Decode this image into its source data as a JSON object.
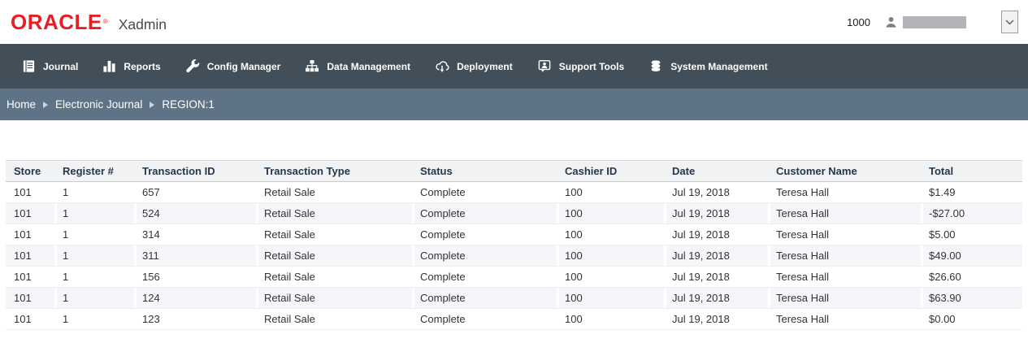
{
  "header": {
    "logo_text": "ORACLE",
    "registered_mark": "®",
    "app_name": "Xadmin",
    "org_id": "1000",
    "user_icon": "person-icon",
    "dropdown_icon": "chevron-down-icon"
  },
  "nav": {
    "items": [
      {
        "label": "Journal",
        "icon": "journal-icon"
      },
      {
        "label": "Reports",
        "icon": "reports-icon"
      },
      {
        "label": "Config Manager",
        "icon": "config-manager-icon"
      },
      {
        "label": "Data Management",
        "icon": "data-management-icon"
      },
      {
        "label": "Deployment",
        "icon": "deployment-icon"
      },
      {
        "label": "Support Tools",
        "icon": "support-tools-icon"
      },
      {
        "label": "System Management",
        "icon": "system-management-icon"
      }
    ]
  },
  "breadcrumb": {
    "items": [
      "Home",
      "Electronic Journal",
      "REGION:1"
    ]
  },
  "table": {
    "columns": [
      "Store",
      "Register #",
      "Transaction ID",
      "Transaction Type",
      "Status",
      "Cashier ID",
      "Date",
      "Customer Name",
      "Total"
    ],
    "rows": [
      [
        "101",
        "1",
        "657",
        "Retail Sale",
        "Complete",
        "100",
        "Jul 19, 2018",
        "Teresa Hall",
        "$1.49"
      ],
      [
        "101",
        "1",
        "524",
        "Retail Sale",
        "Complete",
        "100",
        "Jul 19, 2018",
        "Teresa Hall",
        "-$27.00"
      ],
      [
        "101",
        "1",
        "314",
        "Retail Sale",
        "Complete",
        "100",
        "Jul 19, 2018",
        "Teresa Hall",
        "$5.00"
      ],
      [
        "101",
        "1",
        "311",
        "Retail Sale",
        "Complete",
        "100",
        "Jul 19, 2018",
        "Teresa Hall",
        "$49.00"
      ],
      [
        "101",
        "1",
        "156",
        "Retail Sale",
        "Complete",
        "100",
        "Jul 19, 2018",
        "Teresa Hall",
        "$26.60"
      ],
      [
        "101",
        "1",
        "124",
        "Retail Sale",
        "Complete",
        "100",
        "Jul 19, 2018",
        "Teresa Hall",
        "$63.90"
      ],
      [
        "101",
        "1",
        "123",
        "Retail Sale",
        "Complete",
        "100",
        "Jul 19, 2018",
        "Teresa Hall",
        "$0.00"
      ]
    ]
  },
  "colors": {
    "oracle_red": "#e81e25",
    "nav_bg": "#434f58",
    "breadcrumb_bg": "#5e7486",
    "header_row_bg": "#f0f2f4",
    "striped_row_bg": "#f4f6f9",
    "header_text": "#26374b",
    "body_text": "#333333",
    "redacted_bar": "#b2b3b8"
  }
}
